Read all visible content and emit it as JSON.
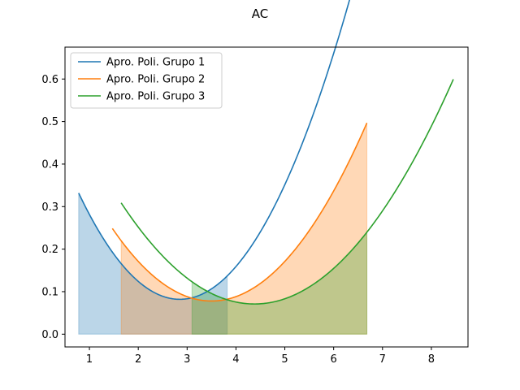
{
  "chart_data": {
    "type": "line",
    "title": "AC",
    "xlabel": "",
    "ylabel": "",
    "xlim": [
      0.5,
      8.75
    ],
    "ylim": [
      -0.03,
      0.675
    ],
    "xticks": [
      1,
      2,
      3,
      4,
      5,
      6,
      7,
      8
    ],
    "yticks": [
      0.0,
      0.1,
      0.2,
      0.3,
      0.4,
      0.5,
      0.6
    ],
    "ytick_labels": [
      "0.0",
      "0.1",
      "0.2",
      "0.3",
      "0.4",
      "0.5",
      "0.6"
    ],
    "legend_position": "upper-left",
    "grid": false,
    "series": [
      {
        "name": "Apro. Poli. Grupo 1",
        "color": "#1f77b4",
        "curve": {
          "type": "quadratic",
          "vertex_x": 2.85,
          "vertex_y": 0.082,
          "a": 0.0583
        },
        "x_range": [
          0.78,
          6.68
        ],
        "fill_range": [
          0.78,
          3.82
        ],
        "fill_color": "#1f77b4"
      },
      {
        "name": "Apro. Poli. Grupo 2",
        "color": "#ff7f0e",
        "curve": {
          "type": "quadratic",
          "vertex_x": 3.5,
          "vertex_y": 0.078,
          "a": 0.0414
        },
        "x_range": [
          1.47,
          6.68
        ],
        "fill_range": [
          1.65,
          6.68
        ],
        "fill_color": "#ff7f0e"
      },
      {
        "name": "Apro. Poli. Grupo 3",
        "color": "#2ca02c",
        "curve": {
          "type": "quadratic",
          "vertex_x": 4.38,
          "vertex_y": 0.071,
          "a": 0.0319
        },
        "x_range": [
          1.65,
          8.45
        ],
        "fill_range": [
          3.1,
          6.68
        ],
        "fill_color": "#2ca02c"
      }
    ]
  }
}
